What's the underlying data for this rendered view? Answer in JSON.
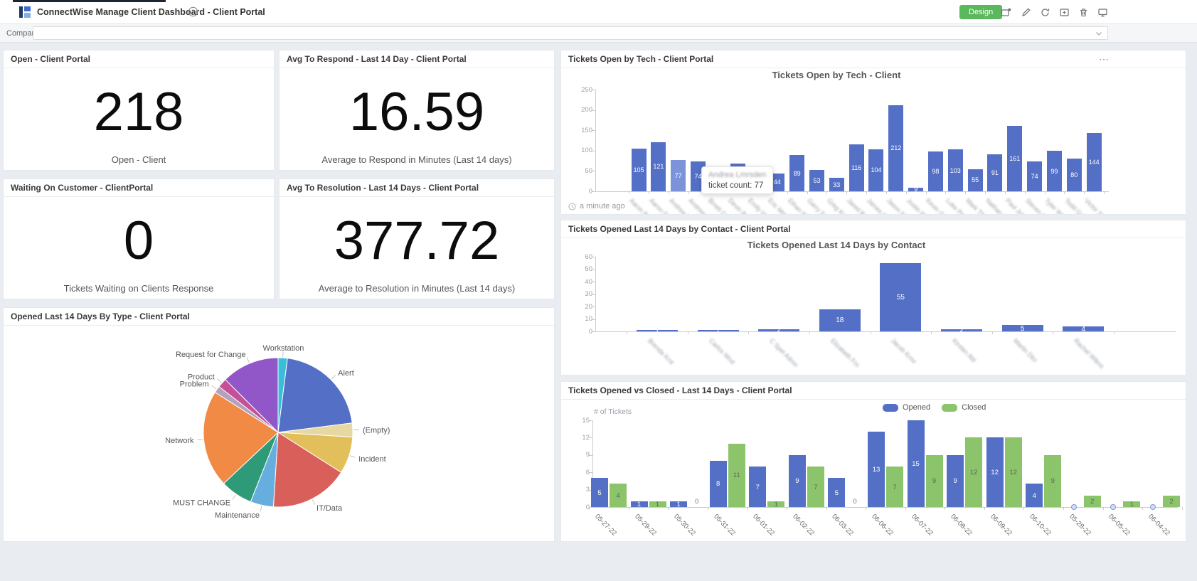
{
  "topbar": {
    "title": "ConnectWise Manage Client Dashboard - Client Portal",
    "design_label": "Design",
    "icons": [
      "share-icon",
      "edit-icon",
      "refresh-icon",
      "add-icon",
      "trash-icon",
      "display-icon"
    ]
  },
  "company": {
    "label": "Company",
    "value": ""
  },
  "value_cards": [
    {
      "title": "Open - Client Portal",
      "value": "218",
      "caption": "Open - Client"
    },
    {
      "title": "Avg To Respond - Last 14 Day - Client Portal",
      "value": "16.59",
      "caption": "Average to Respond in Minutes (Last 14 days)"
    },
    {
      "title": "Waiting On Customer - ClientPortal",
      "value": "0",
      "caption": "Tickets Waiting on Clients Response"
    },
    {
      "title": "Avg To Resolution - Last 14 Days - Client Portal",
      "value": "377.72",
      "caption": "Average to Resolution in Minutes (Last 14 days)"
    }
  ],
  "chart_data": [
    {
      "type": "bar",
      "panel_title": "Tickets Open by Tech - Client Portal",
      "title": "Tickets Open by Tech - Client",
      "ylim": [
        0,
        250
      ],
      "yticks": [
        0,
        50,
        100,
        150,
        200,
        250
      ],
      "values": [
        105,
        121,
        77,
        74,
        50,
        69,
        17,
        44,
        89,
        53,
        33,
        116,
        104,
        212,
        9,
        98,
        103,
        55,
        91,
        161,
        74,
        99,
        80,
        144
      ],
      "value_labels": [
        "105",
        "121",
        "77",
        "74",
        "",
        "69",
        "17",
        "44",
        "89",
        "53",
        "33",
        "116",
        "104",
        "212",
        "9",
        "98",
        "103",
        "55",
        "91",
        "161",
        "74",
        "99",
        "80",
        "144"
      ],
      "highlighted_index": 2,
      "bar_color": "#5470c6",
      "highlight_color": "#7c93da",
      "categories_blurred": [
        "Aaron Brndt",
        "Aaron Dwsn",
        "Andrea Lmrsden",
        "Andrew Mnnrst",
        "Brrett Csln",
        "Devin Bckr",
        "Emily Hrdwy",
        "Eric Mrtnz",
        "Ethan Wlkr",
        "Garry Sndrs",
        "Greg Kmbl",
        "Jared Bnes",
        "James Dlton",
        "Jason Mrgt",
        "Justin Mrcs",
        "Kevin Onl",
        "Luke Prsn",
        "Mark Tlbt",
        "Nathan Rss",
        "Paul Jcbs",
        "Steven Mrly",
        "Tyler Wst",
        "Todd Grffn",
        "Victor Sln"
      ],
      "tooltip": {
        "name": "Andrea Lmrsden",
        "text": "ticket count: 77"
      },
      "updated": "a minute ago"
    },
    {
      "type": "bar",
      "panel_title": "Tickets Opened Last 14 Days by Contact - Client Portal",
      "title": "Tickets Opened Last 14 Days by Contact",
      "ylim": [
        0,
        60
      ],
      "yticks": [
        0,
        10,
        20,
        30,
        40,
        50,
        60
      ],
      "values": [
        1,
        1,
        2,
        18,
        55,
        2,
        5,
        4
      ],
      "bar_color": "#5470c6",
      "categories_blurred": [
        "Brenda Krst",
        "Carlos Wnd",
        "C Spel Admn",
        "Elizabeth Frn",
        "Jacob Krmr",
        "Kirsten Abl",
        "Martin Dlcr",
        "Rachel Wtkns"
      ]
    },
    {
      "type": "grouped_bar",
      "panel_title": "Tickets Opened vs Closed - Last 14 Days - Client Portal",
      "ylabel": "# of Tickets",
      "ylim": [
        0,
        15
      ],
      "yticks": [
        0,
        3,
        6,
        9,
        12,
        15
      ],
      "categories": [
        "05-27-22",
        "05-29-22",
        "05-30-22",
        "05-31-22",
        "06-01-22",
        "06-02-22",
        "06-03-22",
        "06-06-22",
        "06-07-22",
        "06-08-22",
        "06-09-22",
        "06-10-22",
        "05-28-22",
        "06-05-22",
        "06-04-22"
      ],
      "series": [
        {
          "name": "Opened",
          "color": "#5470c6",
          "values": [
            5,
            1,
            1,
            8,
            7,
            9,
            5,
            13,
            15,
            9,
            12,
            4,
            0,
            0,
            0
          ]
        },
        {
          "name": "Closed",
          "color": "#8cc46b",
          "values": [
            4,
            1,
            0,
            11,
            1,
            7,
            0,
            7,
            9,
            12,
            12,
            9,
            2,
            1,
            2
          ]
        }
      ],
      "legend_position": "top-center-right",
      "grid": false
    },
    {
      "type": "pie",
      "panel_title": "Opened Last 14 Days By Type - Client Portal",
      "slices": [
        {
          "label": "Workstation",
          "value": 2,
          "color": "#3bbcd9"
        },
        {
          "label": "Alert",
          "value": 21,
          "color": "#5470c6"
        },
        {
          "label": "(Empty)",
          "value": 3,
          "color": "#e7d8a2"
        },
        {
          "label": "Incident",
          "value": 8,
          "color": "#e3bf5c"
        },
        {
          "label": "IT/Data",
          "value": 17,
          "color": "#d9605a"
        },
        {
          "label": "Maintenance",
          "value": 5,
          "color": "#66aede"
        },
        {
          "label": "MUST CHANGE",
          "value": 7,
          "color": "#2f9a77"
        },
        {
          "label": "Network",
          "value": 21,
          "color": "#f08a44"
        },
        {
          "label": "Problem",
          "value": 1.5,
          "color": "#b3a1bd"
        },
        {
          "label": "Product",
          "value": 2,
          "color": "#c65097"
        },
        {
          "label": "Request for Change",
          "value": 12.5,
          "color": "#9157c8"
        }
      ]
    }
  ]
}
